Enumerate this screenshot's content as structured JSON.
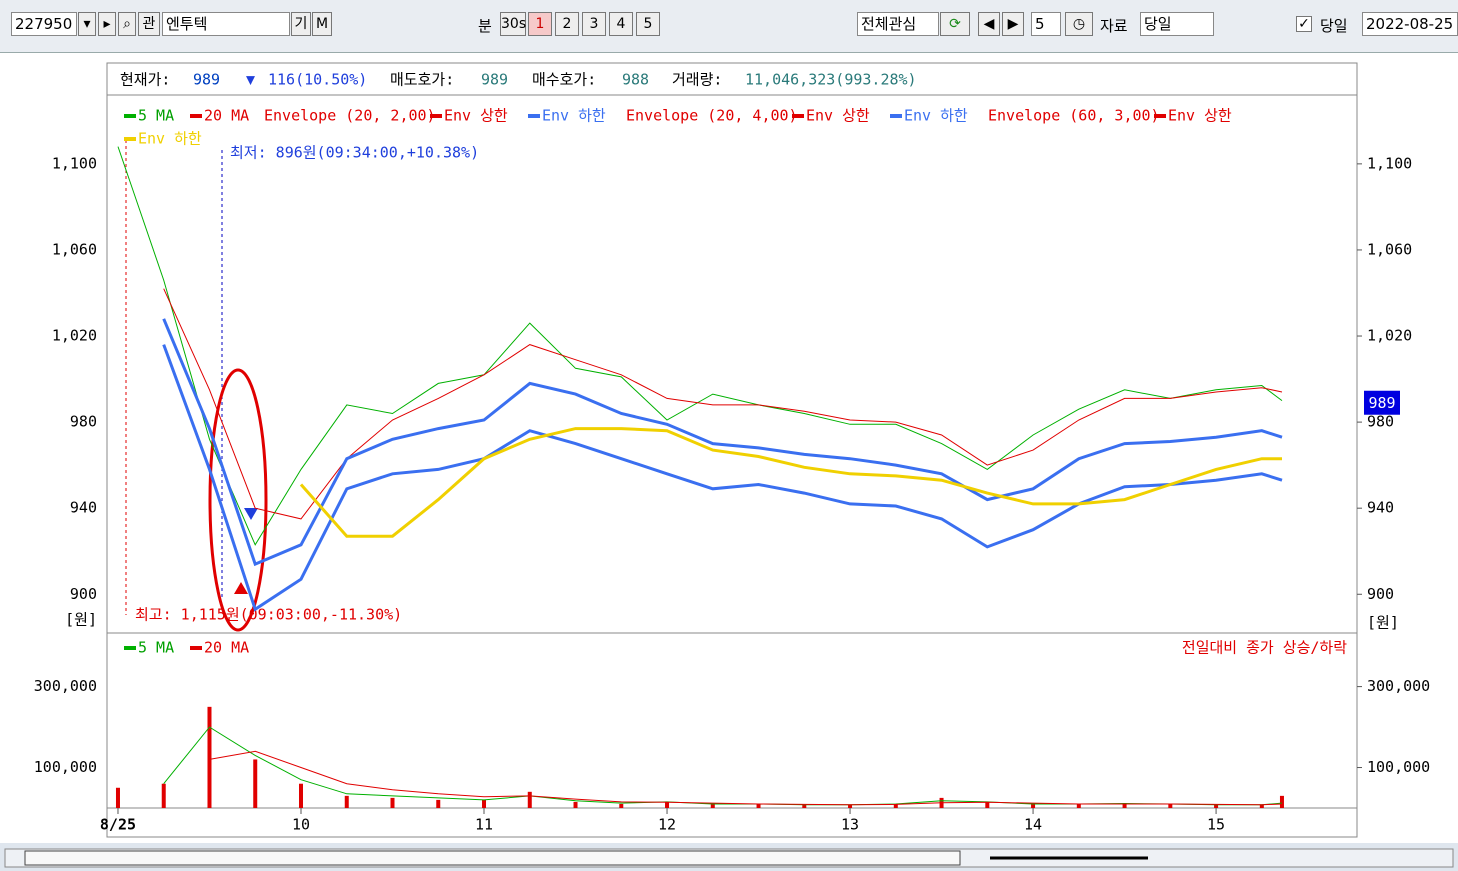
{
  "toolbar": {
    "code": "227950",
    "search_btn": "관",
    "name": "엔투텍",
    "btn_gi": "기",
    "btn_m": "M",
    "period_label": "분",
    "period_30s": "30s",
    "periods": [
      "1",
      "2",
      "3",
      "4",
      "5"
    ],
    "watch": "전체관심",
    "count": "5",
    "data_label": "자료",
    "data_value": "당일",
    "today_label": "당일",
    "date": "2022-08-25"
  },
  "info": {
    "price_label": "현재가:",
    "price": "989",
    "change_arrow": "▼",
    "change": "116(10.50%)",
    "ask_label": "매도호가:",
    "ask": "989",
    "bid_label": "매수호가:",
    "bid": "988",
    "volume_label": "거래량:",
    "volume": "11,046,323(993.28%)"
  },
  "chart_data": [
    {
      "type": "line",
      "unit": "[원]",
      "last_price": 989,
      "annotations": [
        "최저: 896원(09:34:00,+10.38%)",
        "최고: 1,115원(09:03:00,-11.30%)"
      ],
      "legend": [
        {
          "text": "5 MA",
          "color": "#00b000"
        },
        {
          "text": "20 MA",
          "color": "#e00000"
        },
        {
          "text": "Envelope (20, 2,00)"
        },
        {
          "text": "Env 상한",
          "color": "#e00000"
        },
        {
          "text": "Env 하한",
          "color": "#3a6ff0"
        },
        {
          "text": "Envelope (20, 4,00)"
        },
        {
          "text": "Env 상한",
          "color": "#e00000"
        },
        {
          "text": "Env 하한",
          "color": "#3a6ff0"
        },
        {
          "text": "Envelope (60, 3,00)"
        },
        {
          "text": "Env 상한",
          "color": "#e00000"
        },
        {
          "text": "Env 하한",
          "color": "#f0d000"
        }
      ],
      "x": [
        9,
        9.25,
        9.5,
        9.75,
        10,
        10.25,
        10.5,
        10.75,
        11,
        11.25,
        11.5,
        11.75,
        12,
        12.25,
        12.5,
        12.75,
        13,
        13.25,
        13.5,
        13.75,
        14,
        14.25,
        14.5,
        14.75,
        15,
        15.25,
        15.36
      ],
      "xlim": [
        8.94,
        15.77
      ],
      "xticks": [
        {
          "value": 9,
          "label": "8/25"
        },
        10,
        11,
        12,
        13,
        14,
        15
      ],
      "ylim": [
        882,
        1132
      ],
      "yticks": [
        900,
        940,
        980,
        {
          "value": 1020,
          "label": "1,020"
        },
        {
          "value": 1060,
          "label": "1,060"
        },
        {
          "value": 1100,
          "label": "1,100"
        }
      ],
      "series": [
        {
          "color": "#00b000",
          "width": 1,
          "values": [
            1108,
            1046,
            972,
            923,
            958,
            988,
            984,
            998,
            1002,
            1026,
            1005,
            1001,
            981,
            993,
            988,
            984,
            979,
            979,
            970,
            958,
            974,
            986,
            995,
            991,
            995,
            997,
            990
          ]
        },
        {
          "color": "#e00000",
          "width": 1,
          "values": [
            null,
            1042,
            995,
            940,
            935,
            963,
            981,
            991,
            1002,
            1016,
            1009,
            1002,
            991,
            988,
            988,
            985,
            981,
            980,
            974,
            960,
            967,
            981,
            991,
            991,
            994,
            996,
            994
          ]
        },
        {
          "color": "#3a6ff0",
          "width": 3,
          "values": [
            null,
            1028,
            977,
            914,
            923,
            963,
            972,
            977,
            981,
            998,
            993,
            984,
            979,
            970,
            968,
            965,
            963,
            960,
            956,
            944,
            949,
            963,
            970,
            971,
            973,
            976,
            973
          ]
        },
        {
          "color": "#3a6ff0",
          "width": 3,
          "values": [
            null,
            1016,
            958,
            893,
            907,
            949,
            956,
            958,
            963,
            976,
            970,
            963,
            956,
            949,
            951,
            947,
            942,
            941,
            935,
            922,
            930,
            942,
            950,
            951,
            953,
            956,
            953
          ]
        },
        {
          "color": "#f0d000",
          "width": 3,
          "values": [
            null,
            null,
            null,
            null,
            951,
            927,
            927,
            944,
            963,
            972,
            977,
            977,
            976,
            967,
            964,
            959,
            956,
            955,
            953,
            947,
            942,
            942,
            944,
            951,
            958,
            963,
            963
          ]
        }
      ]
    },
    {
      "type": "bar",
      "note": "전일대비 종가 상승/하락",
      "legend": [
        {
          "text": "5 MA",
          "color": "#00b000"
        },
        {
          "text": "20 MA",
          "color": "#e00000"
        }
      ],
      "x": [
        9,
        9.25,
        9.5,
        9.75,
        10,
        10.25,
        10.5,
        10.75,
        11,
        11.25,
        11.5,
        11.75,
        12,
        12.25,
        12.5,
        12.75,
        13,
        13.25,
        13.5,
        13.75,
        14,
        14.25,
        14.5,
        14.75,
        15,
        15.25,
        15.36
      ],
      "ylim": [
        0,
        430000
      ],
      "yticks": [
        {
          "value": 100000,
          "label": "100,000"
        },
        {
          "value": 300000,
          "label": "300,000"
        }
      ],
      "bar_color": "#e00000",
      "values": [
        50000,
        60000,
        250000,
        120000,
        60000,
        30000,
        25000,
        20000,
        20000,
        40000,
        15000,
        10000,
        15000,
        10000,
        10000,
        8000,
        8000,
        10000,
        25000,
        15000,
        10000,
        10000,
        12000,
        10000,
        8000,
        8000,
        30000
      ],
      "series": [
        {
          "color": "#00b000",
          "values": [
            null,
            60000,
            200000,
            130000,
            70000,
            35000,
            30000,
            25000,
            20000,
            30000,
            18000,
            12000,
            15000,
            10000,
            10000,
            8000,
            8000,
            10000,
            18000,
            15000,
            10000,
            10000,
            11000,
            10000,
            8000,
            8000,
            12000
          ]
        },
        {
          "color": "#e00000",
          "values": [
            null,
            null,
            120000,
            140000,
            100000,
            60000,
            45000,
            35000,
            28000,
            30000,
            22000,
            15000,
            14000,
            12000,
            10000,
            9000,
            8000,
            9000,
            13000,
            14000,
            12000,
            10000,
            10000,
            10000,
            9000,
            8000,
            10000
          ]
        }
      ]
    }
  ]
}
